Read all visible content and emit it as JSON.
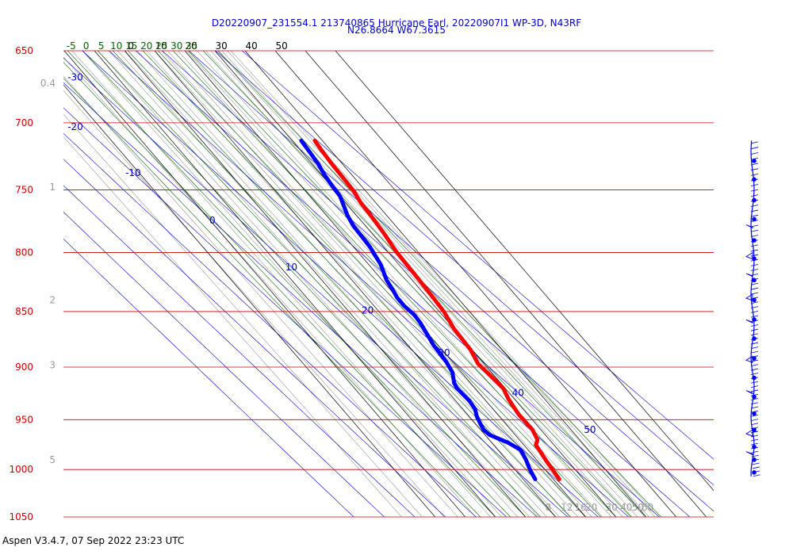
{
  "header": {
    "title_line1": "D20220907_231554.1 213740865 Hurricane Earl, 20220907I1 WP-3D, N43RF",
    "title_line2": "N26.8664 W67.3615"
  },
  "footer": {
    "text": "Aspen V3.4.7, 07 Sep 2022  23:23 UTC"
  },
  "colors": {
    "isobar": "#cc0000",
    "isotherm": "#000000",
    "dry_adiabat": "#0000cc",
    "moist_adiabat": "#006600",
    "mixing_ratio": "#999999",
    "temperature": "#ff0000",
    "dewpoint": "#0000ff",
    "wind": "#0000ff"
  },
  "chart_data": {
    "type": "line",
    "diagram": "skew-T log-P",
    "y_axis": {
      "scale": "log",
      "reversed": true,
      "range": [
        650,
        1050
      ],
      "tick_labels": [
        "650",
        "700",
        "750",
        "800",
        "850",
        "900",
        "950",
        "1000",
        "1050"
      ]
    },
    "isotherm_labels": [
      "0",
      "10",
      "20",
      "30",
      "40",
      "50"
    ],
    "dry_adiabat_labels": [
      "-30",
      "-20",
      "-10",
      "0",
      "10",
      "20",
      "30",
      "40",
      "50"
    ],
    "moist_adiabat_labels": [
      "-5",
      "0",
      "5",
      "10",
      "15",
      "20",
      "25",
      "30",
      "35"
    ],
    "mixing_ratio_left_labels": [
      "0.4",
      "1",
      "2",
      "3",
      "5"
    ],
    "mixing_ratio_bottom_labels": [
      "8",
      "12",
      "16",
      "20",
      "30",
      "40",
      "50",
      "60"
    ],
    "series": [
      {
        "values": [
          [
            1010,
            22.0
          ],
          [
            1000,
            22.5
          ],
          [
            990,
            23.0
          ],
          [
            975,
            24.0
          ],
          [
            970,
            26.0
          ],
          [
            960,
            27.2
          ],
          [
            945,
            27.0
          ],
          [
            930,
            28.0
          ],
          [
            920,
            29.3
          ],
          [
            905,
            28.5
          ],
          [
            897,
            28.0
          ],
          [
            884,
            29.5
          ],
          [
            865,
            30.0
          ],
          [
            850,
            31.5
          ],
          [
            836,
            32.0
          ],
          [
            818,
            32.5
          ],
          [
            800,
            32.8
          ],
          [
            784,
            34.0
          ],
          [
            768,
            34.8
          ],
          [
            760,
            35.0
          ],
          [
            751,
            36.0
          ],
          [
            744,
            36.2
          ],
          [
            730,
            36.5
          ],
          [
            720,
            37.0
          ],
          [
            713,
            37.5
          ]
        ]
      },
      {
        "values": [
          [
            1010,
            14.0
          ],
          [
            1000,
            15.0
          ],
          [
            990,
            16.5
          ],
          [
            980,
            17.5
          ],
          [
            973,
            15.5
          ],
          [
            965,
            11.5
          ],
          [
            960,
            11.0
          ],
          [
            955,
            11.5
          ],
          [
            947,
            12.5
          ],
          [
            940,
            14.0
          ],
          [
            932,
            14.5
          ],
          [
            920,
            14.0
          ],
          [
            915,
            14.5
          ],
          [
            905,
            17.0
          ],
          [
            895,
            18.0
          ],
          [
            880,
            18.5
          ],
          [
            870,
            19.5
          ],
          [
            860,
            20.5
          ],
          [
            853,
            20.8
          ],
          [
            845,
            20.0
          ],
          [
            838,
            20.0
          ],
          [
            831,
            20.8
          ],
          [
            823,
            21.5
          ],
          [
            810,
            24.0
          ],
          [
            795,
            25.5
          ],
          [
            778,
            26.0
          ],
          [
            770,
            27.0
          ],
          [
            755,
            30.0
          ],
          [
            745,
            30.5
          ],
          [
            738,
            31.0
          ],
          [
            730,
            32.0
          ],
          [
            722,
            32.5
          ],
          [
            713,
            33.0
          ]
        ]
      }
    ]
  }
}
